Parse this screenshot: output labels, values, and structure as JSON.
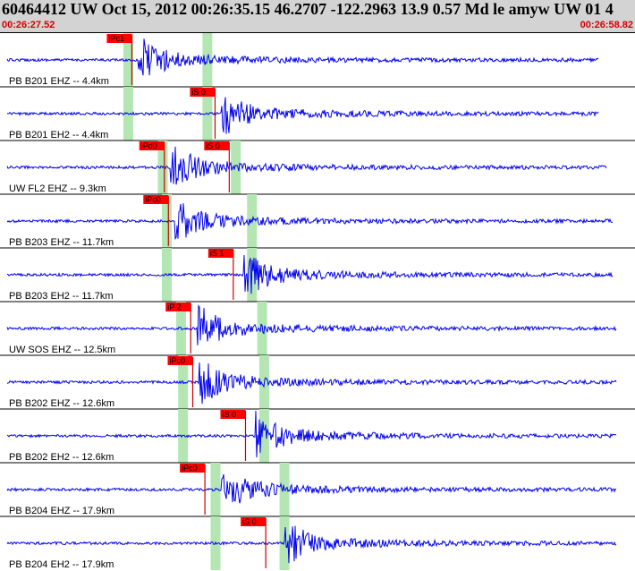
{
  "header": {
    "title": "60464412 UW Oct 15, 2012 00:26:35.15    46.2707 -122.2963 13.9 0.57 Md le amyw UW 01    4",
    "time_start": "00:26:27.52",
    "time_end": "00:26:58.82"
  },
  "colors": {
    "header_bg": "#d3d3d3",
    "trace": "#0000ee",
    "pick_box": "#ff0000",
    "pick_line": "#cc0000",
    "window_band": "#b4e6b4",
    "time_text": "#d40000"
  },
  "time_axis": {
    "start_s": 0,
    "end_s": 31.3
  },
  "channels": [
    {
      "label": "PB B201 EHZ -- 4.4km",
      "picks": [
        {
          "label": "iPc1",
          "t": 6.5
        }
      ],
      "bands": [
        6.3,
        10.2
      ],
      "onset": 6.8,
      "end": 29.5
    },
    {
      "label": "PB B201 EH2 -- 4.4km",
      "picks": [
        {
          "label": "iS 0",
          "t": 10.6
        }
      ],
      "bands": [
        6.3,
        10.2
      ],
      "onset": 10.9,
      "end": 29.5
    },
    {
      "label": "UW FL2 EHZ -- 9.3km",
      "picks": [
        {
          "label": "iPd0",
          "t": 8.1
        },
        {
          "label": "iS 0",
          "t": 11.3
        }
      ],
      "bands": [
        8.0,
        11.6
      ],
      "onset": 8.4,
      "end": 29.9
    },
    {
      "label": "PB B203 EHZ -- 11.7km",
      "picks": [
        {
          "label": "iPc0",
          "t": 8.3
        }
      ],
      "bands": [
        8.2,
        12.4
      ],
      "onset": 8.6,
      "end": 30.2
    },
    {
      "label": "PB B203 EH2 -- 11.7km",
      "picks": [
        {
          "label": "iS 1",
          "t": 11.5
        }
      ],
      "bands": [
        8.2,
        12.4
      ],
      "onset": 12.0,
      "end": 30.2
    },
    {
      "label": "UW SOS EHZ -- 12.5km",
      "picks": [
        {
          "label": "iP 2",
          "t": 9.4
        }
      ],
      "bands": [
        8.9,
        12.9
      ],
      "onset": 9.7,
      "end": 30.4
    },
    {
      "label": "PB B202 EHZ -- 12.6km",
      "picks": [
        {
          "label": "iPc0",
          "t": 9.5
        }
      ],
      "bands": [
        9.0,
        13.0
      ],
      "onset": 9.8,
      "end": 30.4
    },
    {
      "label": "PB B202 EH2 -- 12.6km",
      "picks": [
        {
          "label": "iS 0",
          "t": 12.1
        }
      ],
      "bands": [
        9.0,
        13.0
      ],
      "onset": 12.6,
      "end": 30.4
    },
    {
      "label": "PB B204 EHZ -- 17.9km",
      "picks": [
        {
          "label": "iPc0",
          "t": 10.1
        }
      ],
      "bands": [
        10.6,
        14.0
      ],
      "onset": 10.9,
      "end": 30.4
    },
    {
      "label": "PB B204 EH2 -- 17.9km",
      "picks": [
        {
          "label": "iS 0",
          "t": 13.1
        }
      ],
      "bands": [
        10.6,
        14.0
      ],
      "onset": 14.0,
      "end": 30.4
    }
  ]
}
